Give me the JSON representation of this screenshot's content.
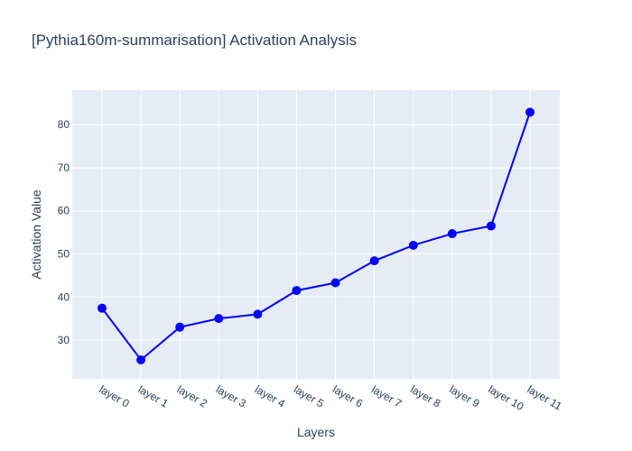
{
  "chart_data": {
    "type": "line",
    "title": "[Pythia160m-summarisation] Activation Analysis",
    "xlabel": "Layers",
    "ylabel": "Activation Value",
    "categories": [
      "layer 0",
      "layer 1",
      "layer 2",
      "layer 3",
      "layer 4",
      "layer 5",
      "layer 6",
      "layer 7",
      "layer 8",
      "layer 9",
      "layer 10",
      "layer 11"
    ],
    "series": [
      {
        "values": [
          37.4,
          25.4,
          33.0,
          35.0,
          36.0,
          41.5,
          43.3,
          48.4,
          52.0,
          54.7,
          56.5,
          82.9
        ],
        "color": "#0000ff"
      }
    ],
    "ylim": [
      21,
      88
    ],
    "yticks": [
      30,
      40,
      50,
      60,
      70,
      80
    ],
    "grid": true,
    "colors": {
      "plot_background": "#e5ecf6",
      "grid": "#ffffff",
      "text": "#2a3f5f",
      "line": "#0000ff"
    }
  }
}
